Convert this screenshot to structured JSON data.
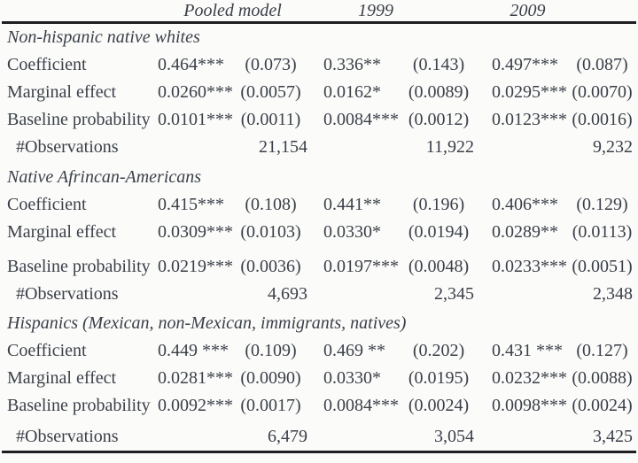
{
  "header": {
    "columns": [
      "Pooled model",
      "1999",
      "2009"
    ]
  },
  "sections": [
    {
      "title": "Non-hispanic native whites",
      "rows": [
        {
          "label": "Coefficient",
          "cells": [
            "0.464***",
            "(0.073)",
            "0.336**",
            "(0.143)",
            "0.497***",
            "(0.087)"
          ]
        },
        {
          "label": "Marginal effect",
          "cells": [
            "0.0260***",
            "(0.0057)",
            "0.0162*",
            "(0.0089)",
            "0.0295***",
            "(0.0070)"
          ]
        },
        {
          "label": "Baseline probability",
          "cells": [
            "0.0101***",
            "(0.0011)",
            "0.0084***",
            "(0.0012)",
            "0.0123***",
            "(0.0016)"
          ]
        },
        {
          "label": "#Observations",
          "cells": [
            "",
            "21,154",
            "",
            "11,922",
            "",
            "9,232"
          ]
        }
      ]
    },
    {
      "title": "Native Afrincan-Americans",
      "rows": [
        {
          "label": "Coefficient",
          "cells": [
            "0.415***",
            "(0.108)",
            "0.441**",
            "(0.196)",
            "0.406***",
            "(0.129)"
          ]
        },
        {
          "label": "Marginal effect",
          "cells": [
            "0.0309***",
            "(0.0103)",
            "0.0330*",
            "(0.0194)",
            "0.0289**",
            "(0.0113)"
          ]
        },
        {
          "label": "Baseline probability",
          "cells": [
            "0.0219***",
            "(0.0036)",
            "0.0197***",
            "(0.0048)",
            "0.0233***",
            "(0.0051)"
          ]
        },
        {
          "label": "#Observations",
          "cells": [
            "",
            "4,693",
            "",
            "2,345",
            "",
            "2,348"
          ]
        }
      ]
    },
    {
      "title": "Hispanics (Mexican, non-Mexican, immigrants, natives)",
      "rows": [
        {
          "label": "Coefficient",
          "cells": [
            "0.449 ***",
            "(0.109)",
            "0.469 **",
            "(0.202)",
            "0.431 ***",
            "(0.127)"
          ]
        },
        {
          "label": "Marginal effect",
          "cells": [
            "0.0281***",
            "(0.0090)",
            "0.0330*",
            "(0.0195)",
            "0.0232***",
            "(0.0088)"
          ]
        },
        {
          "label": "Baseline probability",
          "cells": [
            "0.0092***",
            "(0.0017)",
            "0.0084***",
            "(0.0024)",
            "0.0098***",
            "(0.0024)"
          ]
        },
        {
          "label": "#Observations",
          "cells": [
            "",
            "6,479",
            "",
            "3,054",
            "",
            "3,425"
          ]
        }
      ]
    }
  ]
}
